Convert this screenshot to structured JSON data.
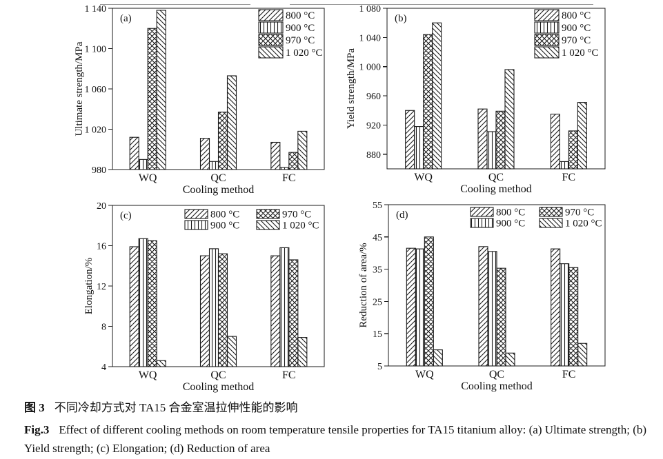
{
  "caption": {
    "zh_label": "图 3",
    "zh_text": "不同冷却方式对 TA15 合金室温拉伸性能的影响",
    "en_label": "Fig.3",
    "en_text": "Effect of different cooling methods on room temperature tensile properties for TA15 titanium alloy: (a) Ultimate strength; (b) Yield strength; (c) Elongation; (d) Reduction of area"
  },
  "chart_data": [
    {
      "id": "a",
      "type": "bar",
      "panel_label": "(a)",
      "ylabel": "Ultimate strength/MPa",
      "xlabel": "Cooling method",
      "categories": [
        "WQ",
        "QC",
        "FC"
      ],
      "series": [
        {
          "name": "800 °C",
          "hatch": "fwd",
          "values": [
            1012,
            1011,
            1007
          ]
        },
        {
          "name": "900 °C",
          "hatch": "vert",
          "values": [
            990,
            988,
            982
          ]
        },
        {
          "name": "970 °C",
          "hatch": "cross",
          "values": [
            1120,
            1037,
            997
          ]
        },
        {
          "name": "1 020 °C",
          "hatch": "back",
          "values": [
            1138,
            1073,
            1018
          ]
        }
      ],
      "ylim": [
        980,
        1140
      ],
      "yticks": [
        {
          "v": 980,
          "label": "980"
        },
        {
          "v": 1020,
          "label": "1 020"
        },
        {
          "v": 1060,
          "label": "1 060"
        },
        {
          "v": 1100,
          "label": "1 100"
        },
        {
          "v": 1140,
          "label": "1 140"
        }
      ],
      "legend_position": "top-right-column",
      "grid": false
    },
    {
      "id": "b",
      "type": "bar",
      "panel_label": "(b)",
      "ylabel": "Yield strength/MPa",
      "xlabel": "Cooling method",
      "categories": [
        "WQ",
        "QC",
        "FC"
      ],
      "series": [
        {
          "name": "800 °C",
          "hatch": "fwd",
          "values": [
            940,
            942,
            935
          ]
        },
        {
          "name": "900 °C",
          "hatch": "vert",
          "values": [
            918,
            911,
            870
          ]
        },
        {
          "name": "970 °C",
          "hatch": "cross",
          "values": [
            1044,
            939,
            912
          ]
        },
        {
          "name": "1 020 °C",
          "hatch": "back",
          "values": [
            1060,
            996,
            951
          ]
        }
      ],
      "ylim": [
        860,
        1080
      ],
      "yticks": [
        {
          "v": 880,
          "label": "880"
        },
        {
          "v": 920,
          "label": "920"
        },
        {
          "v": 960,
          "label": "960"
        },
        {
          "v": 1000,
          "label": "1 000"
        },
        {
          "v": 1040,
          "label": "1 040"
        },
        {
          "v": 1080,
          "label": "1 080"
        }
      ],
      "legend_position": "top-right-column",
      "grid": false
    },
    {
      "id": "c",
      "type": "bar",
      "panel_label": "(c)",
      "ylabel": "Elongation/%",
      "xlabel": "Cooling method",
      "categories": [
        "WQ",
        "QC",
        "FC"
      ],
      "series": [
        {
          "name": "800 °C",
          "hatch": "fwd",
          "values": [
            15.9,
            15.0,
            15.0
          ]
        },
        {
          "name": "900 °C",
          "hatch": "vert",
          "values": [
            16.7,
            15.7,
            15.8
          ]
        },
        {
          "name": "970 °C",
          "hatch": "cross",
          "values": [
            16.5,
            15.2,
            14.6
          ]
        },
        {
          "name": "1 020 °C",
          "hatch": "back",
          "values": [
            4.6,
            7.0,
            6.9
          ]
        }
      ],
      "ylim": [
        4,
        20
      ],
      "yticks": [
        {
          "v": 4,
          "label": "4"
        },
        {
          "v": 8,
          "label": "8"
        },
        {
          "v": 12,
          "label": "12"
        },
        {
          "v": 16,
          "label": "16"
        },
        {
          "v": 20,
          "label": "20"
        }
      ],
      "legend_position": "top-center-two-column",
      "grid": false
    },
    {
      "id": "d",
      "type": "bar",
      "panel_label": "(d)",
      "ylabel": "Reduction of area/%",
      "xlabel": "Cooling method",
      "categories": [
        "WQ",
        "QC",
        "FC"
      ],
      "series": [
        {
          "name": "800 °C",
          "hatch": "fwd",
          "values": [
            41.5,
            42.0,
            41.3
          ]
        },
        {
          "name": "900 °C",
          "hatch": "vert",
          "values": [
            41.3,
            40.5,
            36.7
          ]
        },
        {
          "name": "970 °C",
          "hatch": "cross",
          "values": [
            45.0,
            35.3,
            35.5
          ]
        },
        {
          "name": "1 020 °C",
          "hatch": "back",
          "values": [
            10.0,
            9.0,
            12.0
          ]
        }
      ],
      "ylim": [
        5,
        55
      ],
      "yticks": [
        {
          "v": 5,
          "label": "5"
        },
        {
          "v": 15,
          "label": "15"
        },
        {
          "v": 25,
          "label": "25"
        },
        {
          "v": 35,
          "label": "35"
        },
        {
          "v": 45,
          "label": "45"
        },
        {
          "v": 55,
          "label": "55"
        }
      ],
      "legend_position": "top-center-two-column",
      "grid": false
    }
  ],
  "colors": {
    "ink": "#1a1a1a",
    "rule": "#9a9a9a",
    "background": "#ffffff"
  }
}
